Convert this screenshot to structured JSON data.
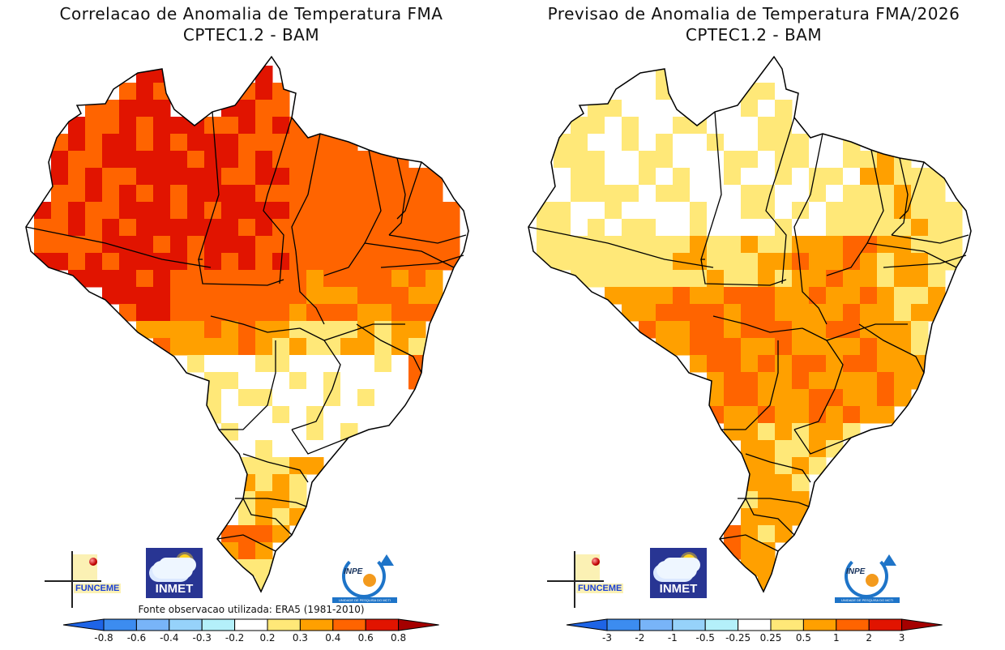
{
  "chart_data": [
    {
      "type": "heatmap",
      "title": "Correlacao de Anomalia de Temperatura FMA",
      "subtitle": "CPTEC1.2 - BAM",
      "region": "Brazil",
      "source_note": "Fonte observacao utilizada: ERA5 (1981-2010)",
      "colorbar": {
        "ticks": [
          "-0.8",
          "-0.6",
          "-0.4",
          "-0.3",
          "-0.2",
          "0.2",
          "0.3",
          "0.4",
          "0.6",
          "0.8"
        ],
        "colors": [
          "#1e64e6",
          "#3c8cf0",
          "#78b4f8",
          "#96d2fa",
          "#b4f0fa",
          "#ffffff",
          "#ffe878",
          "#ffa000",
          "#ff6400",
          "#e11400",
          "#a50000"
        ]
      },
      "regional_pattern": {
        "north_amazon": "0.6-0.8",
        "west_amazon": "0.4-0.6",
        "northeast": "0.4-0.6",
        "central_west": "0.3-0.6",
        "southeast": "-0.2-0.3",
        "south": "0.2-0.6"
      }
    },
    {
      "type": "heatmap",
      "title": "Previsao de Anomalia de Temperatura FMA/2026",
      "subtitle": "CPTEC1.2 - BAM",
      "region": "Brazil",
      "colorbar": {
        "ticks": [
          "-3",
          "-2",
          "-1",
          "-0.5",
          "-0.25",
          "0.25",
          "0.5",
          "1",
          "2",
          "3"
        ],
        "colors": [
          "#1e64e6",
          "#3c8cf0",
          "#78b4f8",
          "#96d2fa",
          "#b4f0fa",
          "#ffffff",
          "#ffe878",
          "#ffa000",
          "#ff6400",
          "#e11400",
          "#a50000"
        ]
      },
      "regional_pattern": {
        "north_amazon": "-0.25-0.5",
        "northeast": "0.25-1",
        "central_west": "1-2",
        "southeast": "0.25-2",
        "south": "0.5-2"
      }
    }
  ],
  "logos": {
    "funceme": "FUNCEME",
    "inmet": "INMET",
    "inpe": "INPE",
    "inpe_band": "UNIDADE DE PESQUISA DO MCTI"
  },
  "panels": [
    {
      "title_line1": "Correlacao de Anomalia de Temperatura FMA",
      "title_line2": "CPTEC1.2 - BAM",
      "source": "Fonte observacao utilizada: ERA5 (1981-2010)"
    },
    {
      "title_line1": "Previsao de Anomalia de Temperatura FMA/2026",
      "title_line2": "CPTEC1.2 - BAM",
      "source": ""
    }
  ]
}
